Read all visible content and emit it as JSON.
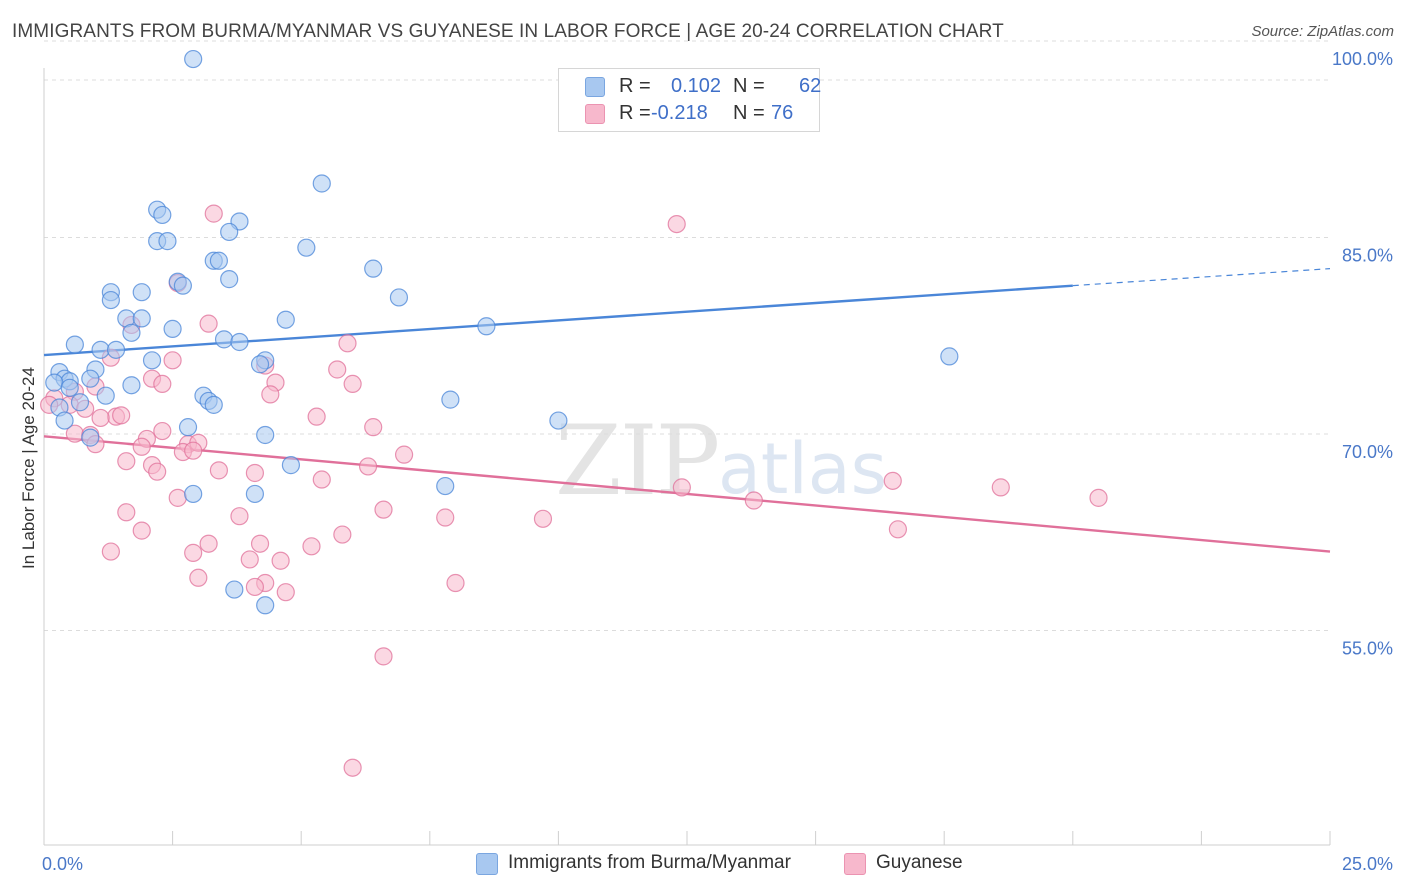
{
  "header": {
    "title": "IMMIGRANTS FROM BURMA/MYANMAR VS GUYANESE IN LABOR FORCE | AGE 20-24 CORRELATION CHART",
    "source": "Source: ZipAtlas.com"
  },
  "watermark": {
    "zip": "ZIP",
    "atlas": "atlas"
  },
  "legend": {
    "r_label": "R =",
    "n_label": "N =",
    "rows": [
      {
        "r": "0.102",
        "n": "62",
        "color": "#a8c8f0"
      },
      {
        "r": "-0.218",
        "n": "76",
        "color": "#f7b8cc"
      }
    ]
  },
  "bottom_legend": [
    {
      "label": "Immigrants from Burma/Myanmar",
      "color": "#a8c8f0"
    },
    {
      "label": "Guyanese",
      "color": "#f7b8cc"
    }
  ],
  "chart_data": {
    "type": "scatter",
    "title": "IMMIGRANTS FROM BURMA/MYANMAR VS GUYANESE IN LABOR FORCE | AGE 20-24 CORRELATION CHART",
    "ylabel": "In Labor Force | Age 20-24",
    "xlim": [
      0,
      25
    ],
    "ylim": [
      40,
      100
    ],
    "y_ticks": [
      {
        "value": 100,
        "label": "100.0%"
      },
      {
        "value": 85,
        "label": "85.0%"
      },
      {
        "value": 70,
        "label": "70.0%"
      },
      {
        "value": 55,
        "label": "55.0%"
      }
    ],
    "x_ticks": [
      {
        "value": 0,
        "label": "0.0%"
      },
      {
        "value": 25,
        "label": "25.0%"
      }
    ],
    "grid": true,
    "series": [
      {
        "name": "Immigrants from Burma/Myanmar",
        "color": "#4a86d8",
        "fill": "#a8c8f0",
        "trend": {
          "x0": 0,
          "y0": 77.4,
          "x1": 20.0,
          "y1": 82.7,
          "dashed_to_x": 25,
          "dashed_to_y": 84.0
        },
        "points": [
          [
            2.9,
            100.0
          ],
          [
            5.4,
            90.5
          ],
          [
            2.2,
            88.5
          ],
          [
            2.3,
            88.1
          ],
          [
            3.8,
            87.6
          ],
          [
            3.6,
            86.8
          ],
          [
            2.2,
            86.1
          ],
          [
            2.4,
            86.1
          ],
          [
            5.1,
            85.6
          ],
          [
            3.3,
            84.6
          ],
          [
            3.4,
            84.6
          ],
          [
            6.4,
            84.0
          ],
          [
            3.6,
            83.2
          ],
          [
            2.6,
            83.0
          ],
          [
            2.7,
            82.7
          ],
          [
            1.3,
            82.2
          ],
          [
            1.9,
            82.2
          ],
          [
            1.3,
            81.6
          ],
          [
            6.9,
            81.8
          ],
          [
            1.6,
            80.2
          ],
          [
            1.9,
            80.2
          ],
          [
            4.7,
            80.1
          ],
          [
            2.5,
            79.4
          ],
          [
            1.7,
            79.1
          ],
          [
            8.6,
            79.6
          ],
          [
            3.5,
            78.6
          ],
          [
            3.8,
            78.4
          ],
          [
            0.6,
            78.2
          ],
          [
            1.1,
            77.8
          ],
          [
            1.4,
            77.8
          ],
          [
            2.1,
            77.0
          ],
          [
            4.3,
            77.0
          ],
          [
            4.2,
            76.7
          ],
          [
            17.6,
            77.3
          ],
          [
            1.0,
            76.3
          ],
          [
            0.3,
            76.1
          ],
          [
            0.4,
            75.6
          ],
          [
            0.5,
            75.4
          ],
          [
            0.2,
            75.3
          ],
          [
            0.9,
            75.6
          ],
          [
            1.7,
            75.1
          ],
          [
            0.5,
            74.9
          ],
          [
            1.2,
            74.3
          ],
          [
            3.1,
            74.3
          ],
          [
            3.2,
            73.9
          ],
          [
            7.9,
            74.0
          ],
          [
            0.7,
            73.8
          ],
          [
            3.3,
            73.6
          ],
          [
            0.3,
            73.4
          ],
          [
            10.0,
            72.4
          ],
          [
            0.4,
            72.4
          ],
          [
            2.8,
            71.9
          ],
          [
            4.3,
            71.3
          ],
          [
            0.9,
            71.1
          ],
          [
            4.8,
            69.0
          ],
          [
            7.8,
            67.4
          ],
          [
            2.9,
            66.8
          ],
          [
            4.1,
            66.8
          ],
          [
            3.7,
            59.5
          ],
          [
            4.3,
            58.3
          ]
        ]
      },
      {
        "name": "Guyanese",
        "color": "#e0709a",
        "fill": "#f7b8cc",
        "trend": {
          "x0": 0,
          "y0": 71.2,
          "x1": 25,
          "y1": 62.4
        },
        "points": [
          [
            3.3,
            88.2
          ],
          [
            12.3,
            87.4
          ],
          [
            2.6,
            82.9
          ],
          [
            3.2,
            79.8
          ],
          [
            1.7,
            79.7
          ],
          [
            5.9,
            78.3
          ],
          [
            1.3,
            77.2
          ],
          [
            2.5,
            77.0
          ],
          [
            4.3,
            76.6
          ],
          [
            5.7,
            76.3
          ],
          [
            2.1,
            75.6
          ],
          [
            6.0,
            75.2
          ],
          [
            2.3,
            75.2
          ],
          [
            4.5,
            75.3
          ],
          [
            1.0,
            75.0
          ],
          [
            0.6,
            74.6
          ],
          [
            4.4,
            74.4
          ],
          [
            0.2,
            74.1
          ],
          [
            0.1,
            73.6
          ],
          [
            0.5,
            73.6
          ],
          [
            0.8,
            73.3
          ],
          [
            1.4,
            72.7
          ],
          [
            1.5,
            72.8
          ],
          [
            1.1,
            72.6
          ],
          [
            5.3,
            72.7
          ],
          [
            6.4,
            71.9
          ],
          [
            2.3,
            71.6
          ],
          [
            0.6,
            71.4
          ],
          [
            0.9,
            71.3
          ],
          [
            2.0,
            71.0
          ],
          [
            1.0,
            70.6
          ],
          [
            2.8,
            70.6
          ],
          [
            3.0,
            70.7
          ],
          [
            1.9,
            70.4
          ],
          [
            2.7,
            70.0
          ],
          [
            2.9,
            70.1
          ],
          [
            7.0,
            69.8
          ],
          [
            1.6,
            69.3
          ],
          [
            2.1,
            69.0
          ],
          [
            2.2,
            68.5
          ],
          [
            6.3,
            68.9
          ],
          [
            4.1,
            68.4
          ],
          [
            3.4,
            68.6
          ],
          [
            5.4,
            67.9
          ],
          [
            12.4,
            67.3
          ],
          [
            16.5,
            67.8
          ],
          [
            18.6,
            67.3
          ],
          [
            2.6,
            66.5
          ],
          [
            13.8,
            66.3
          ],
          [
            20.5,
            66.5
          ],
          [
            1.6,
            65.4
          ],
          [
            6.6,
            65.6
          ],
          [
            3.8,
            65.1
          ],
          [
            7.8,
            65.0
          ],
          [
            9.7,
            64.9
          ],
          [
            1.9,
            64.0
          ],
          [
            16.6,
            64.1
          ],
          [
            5.8,
            63.7
          ],
          [
            3.2,
            63.0
          ],
          [
            4.2,
            63.0
          ],
          [
            5.2,
            62.8
          ],
          [
            1.3,
            62.4
          ],
          [
            2.9,
            62.3
          ],
          [
            4.0,
            61.8
          ],
          [
            4.6,
            61.7
          ],
          [
            3.0,
            60.4
          ],
          [
            8.0,
            60.0
          ],
          [
            4.3,
            60.0
          ],
          [
            4.1,
            59.7
          ],
          [
            4.7,
            59.3
          ],
          [
            6.6,
            54.4
          ],
          [
            6.0,
            45.9
          ]
        ]
      }
    ]
  }
}
